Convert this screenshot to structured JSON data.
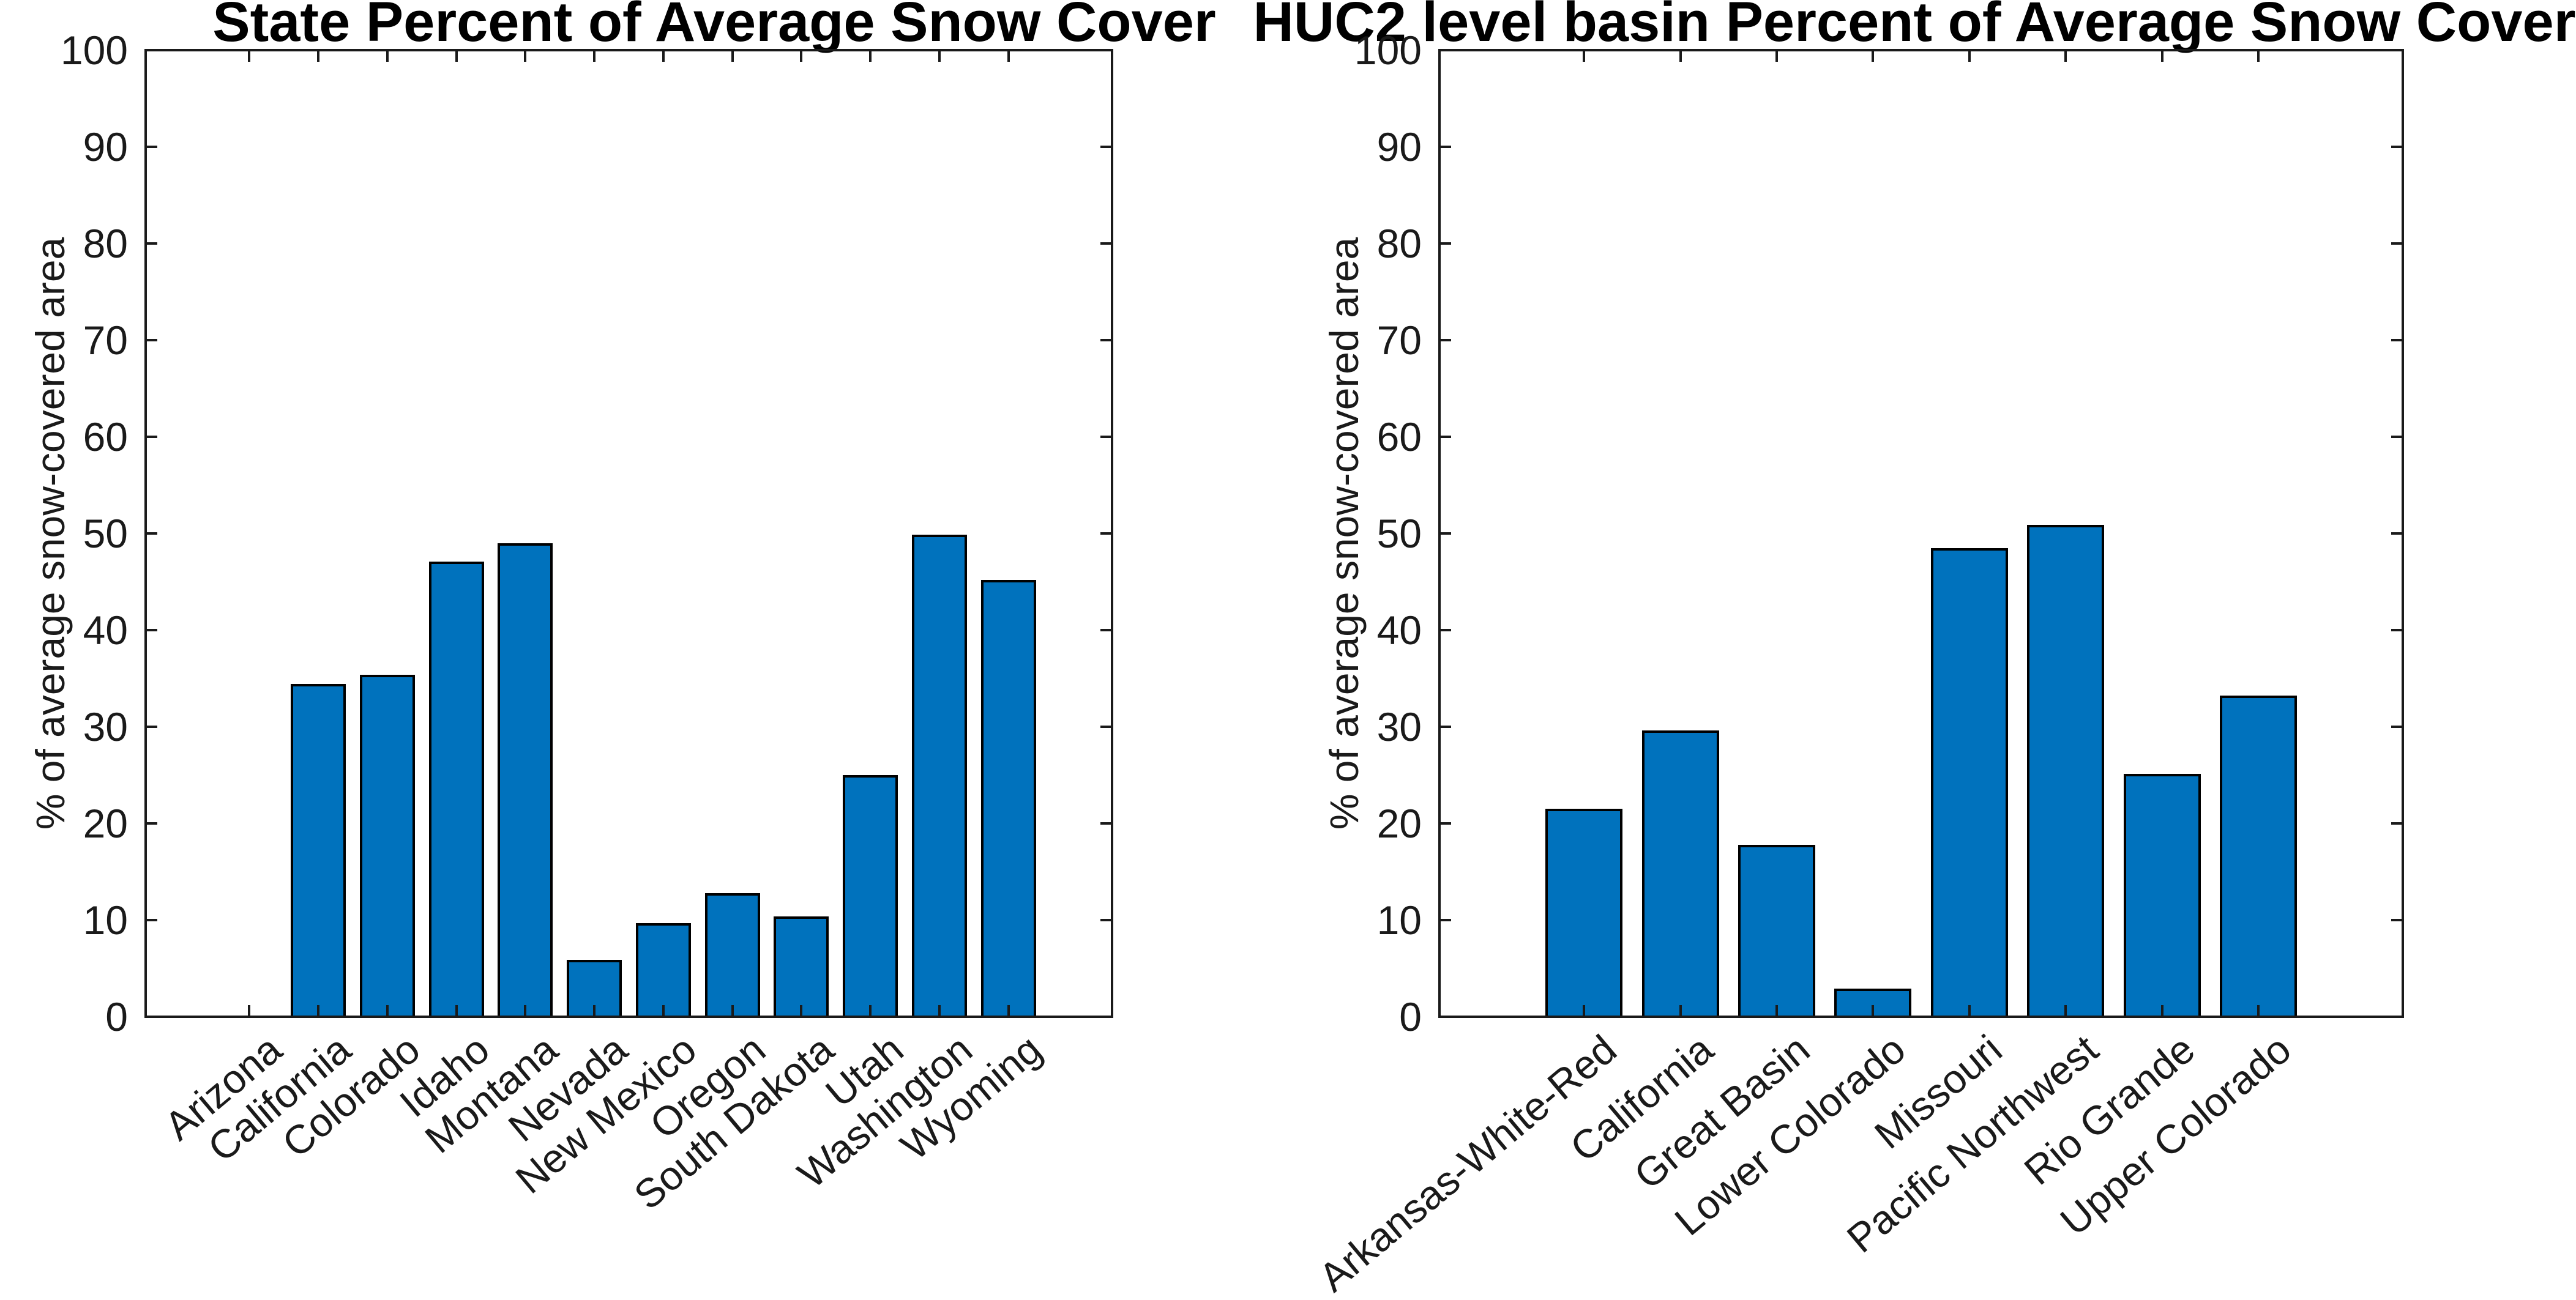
{
  "figure": {
    "background": "#ffffff",
    "text_color": "#1a1a1a"
  },
  "chart_data": [
    {
      "type": "bar",
      "title": "State Percent of Average Snow Cover",
      "ylabel": "% of average snow-covered area",
      "xlabel": "",
      "categories": [
        "Arizona",
        "California",
        "Colorado",
        "Idaho",
        "Montana",
        "Nevada",
        "New Mexico",
        "Oregon",
        "South Dakota",
        "Utah",
        "Washington",
        "Wyoming"
      ],
      "values": [
        0,
        34.4,
        35.4,
        47.1,
        49.0,
        5.9,
        9.7,
        12.8,
        10.4,
        25.0,
        49.9,
        45.2
      ],
      "ylim": [
        0,
        100
      ],
      "yticks": [
        0,
        10,
        20,
        30,
        40,
        50,
        60,
        70,
        80,
        90,
        100
      ],
      "xtick_angle_deg": 40,
      "bar_color": "#0072BD",
      "bar_edge_color": "#000000",
      "grid": "off",
      "legend": "none",
      "box": "on",
      "tick_direction": "in"
    },
    {
      "type": "bar",
      "title": "HUC2 level basin Percent of Average Snow Cover",
      "ylabel": "% of average snow-covered area",
      "xlabel": "",
      "categories": [
        "Arkansas-White-Red",
        "California",
        "Great Basin",
        "Lower Colorado",
        "Missouri",
        "Pacific Northwest",
        "Rio Grande",
        "Upper Colorado"
      ],
      "values": [
        21.5,
        29.6,
        17.8,
        2.9,
        48.5,
        50.9,
        25.1,
        33.2
      ],
      "ylim": [
        0,
        100
      ],
      "yticks": [
        0,
        10,
        20,
        30,
        40,
        50,
        60,
        70,
        80,
        90,
        100
      ],
      "xtick_angle_deg": 40,
      "bar_color": "#0072BD",
      "bar_edge_color": "#000000",
      "grid": "off",
      "legend": "none",
      "box": "on",
      "tick_direction": "in"
    }
  ]
}
